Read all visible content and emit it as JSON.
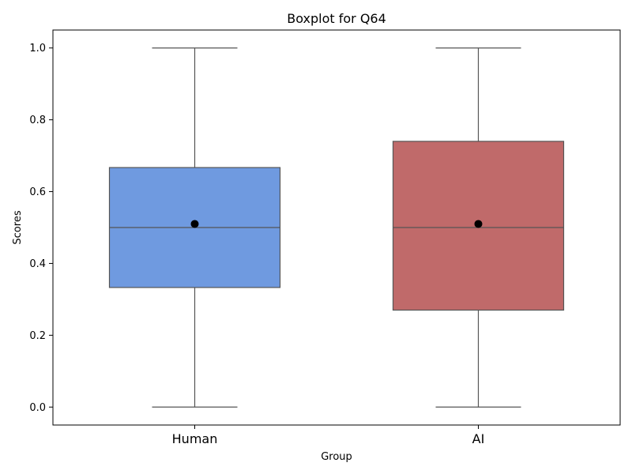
{
  "chart_data": {
    "type": "boxplot",
    "title": "Boxplot for Q64",
    "xlabel": "Group",
    "ylabel": "Scores",
    "ylim": [
      -0.05,
      1.05
    ],
    "yticks": [
      0.0,
      0.2,
      0.4,
      0.6,
      0.8,
      1.0
    ],
    "ytick_labels": [
      "0.0",
      "0.2",
      "0.4",
      "0.6",
      "0.8",
      "1.0"
    ],
    "grid": false,
    "categories": [
      "Human",
      "AI"
    ],
    "boxes": [
      {
        "category": "Human",
        "min": 0.0,
        "q1": 0.333,
        "median": 0.5,
        "q3": 0.667,
        "max": 1.0,
        "mean": 0.51,
        "color": "#6f9ae0"
      },
      {
        "category": "AI",
        "min": 0.0,
        "q1": 0.27,
        "median": 0.5,
        "q3": 0.74,
        "max": 1.0,
        "mean": 0.51,
        "color": "#c06a6a"
      }
    ],
    "line_color": "#555555",
    "mean_marker_color": "#000000"
  }
}
